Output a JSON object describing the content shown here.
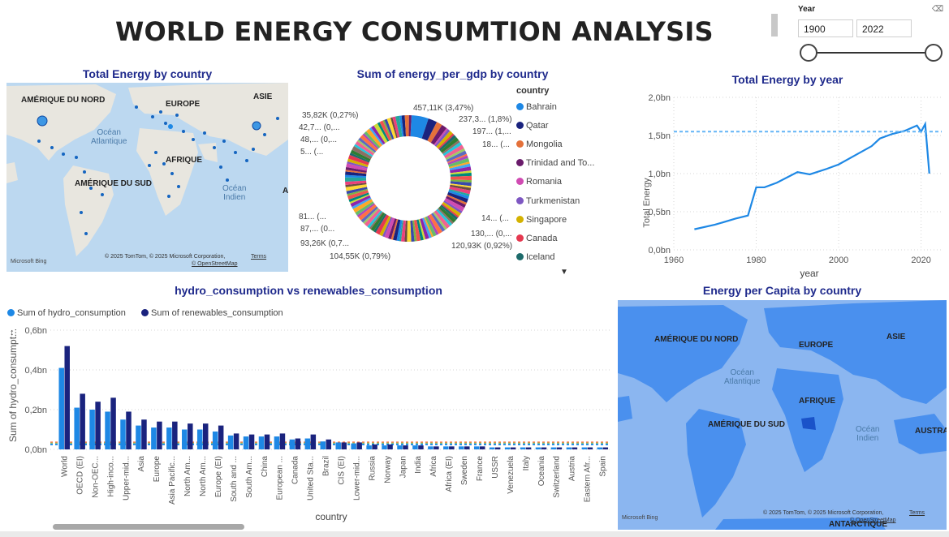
{
  "header": {
    "title": "WORLD ENERGY CONSUMTION ANALYSIS"
  },
  "slicer": {
    "label": "Year",
    "start": "1900",
    "end": "2022"
  },
  "map1": {
    "title": "Total Energy by country",
    "labels": {
      "north_america": "AMÉRIQUE DU NORD",
      "europe": "EUROPE",
      "asia": "ASIE",
      "africa": "AFRIQUE",
      "south_america": "AMÉRIQUE DU SUD",
      "a": "A"
    },
    "oceans": {
      "atlantic": "Océan\nAtlantique",
      "indian": "Océan\nIndien"
    },
    "copyright": "© 2025 TomTom, © 2025 Microsoft Corporation,",
    "terms": "Terms",
    "osm": "© OpenStreetMap",
    "bing": "Microsoft Bing"
  },
  "donut": {
    "title": "Sum of energy_per_gdp by country",
    "legend_title": "country",
    "legend": [
      {
        "name": "Bahrain",
        "color": "#1e88e5"
      },
      {
        "name": "Qatar",
        "color": "#1a237e"
      },
      {
        "name": "Mongolia",
        "color": "#e4713a"
      },
      {
        "name": "Trinidad and To...",
        "color": "#6a1b6b"
      },
      {
        "name": "Romania",
        "color": "#d04bb2"
      },
      {
        "name": "Turkmenistan",
        "color": "#7e57c2"
      },
      {
        "name": "Singapore",
        "color": "#d4b200"
      },
      {
        "name": "Canada",
        "color": "#e53950"
      },
      {
        "name": "Iceland",
        "color": "#1d6b6b"
      }
    ],
    "labels": [
      "457,11K (3,47%)",
      "237,3... (1,8%)",
      "197... (1,...",
      "18... (...",
      "35,82K (0,27%)",
      "42,7... (0,...",
      "48,... (0,...",
      "5... (...",
      "14... (...",
      "130,... (0,...",
      "120,93K (0,92%)",
      "104,55K (0,79%)",
      "93,26K (0,7...",
      "87,... (0...",
      "81... (..."
    ]
  },
  "line": {
    "title": "Total Energy by year",
    "xlabel": "year",
    "ylabel": "Total Energy",
    "y_ticks": [
      "0,0bn",
      "0,5bn",
      "1,0bn",
      "1,5bn",
      "2,0bn"
    ],
    "x_ticks": [
      "1960",
      "1980",
      "2000",
      "2020"
    ]
  },
  "bars": {
    "title": "hydro_consumption vs renewables_consumption",
    "xlabel": "country",
    "ylabel": "Sum of hydro_consumpt...",
    "y_ticks": [
      "0,0bn",
      "0,2bn",
      "0,4bn",
      "0,6bn"
    ]
  },
  "map2": {
    "title": "Energy per Capita by country",
    "labels": {
      "north_america": "AMÉRIQUE DU NORD",
      "europe": "EUROPE",
      "asia": "ASIE",
      "africa": "AFRIQUE",
      "south_america": "AMÉRIQUE DU SUD",
      "australia": "AUSTRA",
      "antarctica": "ANTARCTIQUE"
    },
    "oceans": {
      "atlantic": "Océan\nAtlantique",
      "indian": "Océan\nIndien"
    },
    "copyright": "© 2025 TomTom, © 2025 Microsoft Corporation,",
    "terms": "Terms",
    "osm": "© OpenStreetMap",
    "bing": "Microsoft Bing"
  },
  "chart_data": [
    {
      "type": "pie",
      "title": "Sum of energy_per_gdp by country",
      "legend_title": "country",
      "categories": [
        "Bahrain",
        "Qatar",
        "Mongolia",
        "Trinidad and To...",
        "Romania",
        "Turkmenistan",
        "Singapore",
        "Canada",
        "Iceland"
      ],
      "highlighted_slices": [
        {
          "label": "457,11K (3,47%)",
          "value": 457110,
          "percent": 3.47
        },
        {
          "label": "237,3... (1,8%)",
          "value": 237300,
          "percent": 1.8
        },
        {
          "label": "120,93K (0,92%)",
          "value": 120930,
          "percent": 0.92
        },
        {
          "label": "104,55K (0,79%)",
          "value": 104550,
          "percent": 0.79
        },
        {
          "label": "35,82K (0,27%)",
          "value": 35820,
          "percent": 0.27
        }
      ]
    },
    {
      "type": "line",
      "title": "Total Energy by year",
      "xlabel": "year",
      "ylabel": "Total Energy",
      "x": [
        1965,
        1970,
        1975,
        1978,
        1980,
        1982,
        1985,
        1990,
        1993,
        1997,
        2000,
        2004,
        2008,
        2010,
        2013,
        2016,
        2019,
        2020,
        2021,
        2022
      ],
      "y": [
        0.27,
        0.33,
        0.41,
        0.45,
        0.82,
        0.82,
        0.88,
        1.02,
        0.99,
        1.06,
        1.12,
        1.24,
        1.36,
        1.46,
        1.52,
        1.56,
        1.63,
        1.55,
        1.65,
        1.0
      ],
      "units": "bn",
      "ylim": [
        0,
        2.0
      ],
      "xlim": [
        1960,
        2025
      ],
      "reference_line": 1.55,
      "grid": true
    },
    {
      "type": "bar",
      "title": "hydro_consumption vs renewables_consumption",
      "xlabel": "country",
      "ylabel": "Sum of hydro_consumpt...",
      "units": "bn",
      "ylim": [
        0,
        0.6
      ],
      "legend_position": "top-left",
      "categories": [
        "World",
        "OECD (EI)",
        "Non-OEC...",
        "High-inco...",
        "Upper-mid...",
        "Asia",
        "Europe",
        "Asia Pacific...",
        "North Am...",
        "North Am...",
        "Europe (EI)",
        "South and ...",
        "South Am...",
        "China",
        "European ...",
        "Canada",
        "United Sta...",
        "Brazil",
        "CIS (EI)",
        "Lower-mid...",
        "Russia",
        "Norway",
        "Japan",
        "India",
        "Africa",
        "Africa (EI)",
        "Sweden",
        "France",
        "USSR",
        "Venezuela",
        "Italy",
        "Oceania",
        "Switzerland",
        "Austria",
        "Eastern Afr...",
        "Spain"
      ],
      "series": [
        {
          "name": "Sum of hydro_consumption",
          "color": "#1e88e5",
          "values": [
            0.41,
            0.21,
            0.2,
            0.19,
            0.15,
            0.12,
            0.11,
            0.11,
            0.1,
            0.1,
            0.09,
            0.07,
            0.065,
            0.065,
            0.065,
            0.05,
            0.055,
            0.04,
            0.035,
            0.03,
            0.02,
            0.02,
            0.02,
            0.02,
            0.015,
            0.015,
            0.015,
            0.015,
            0.01,
            0.01,
            0.01,
            0.01,
            0.01,
            0.01,
            0.01,
            0.01
          ]
        },
        {
          "name": "Sum of renewables_consumption",
          "color": "#1a237e",
          "values": [
            0.52,
            0.28,
            0.24,
            0.26,
            0.19,
            0.15,
            0.14,
            0.14,
            0.13,
            0.13,
            0.12,
            0.08,
            0.075,
            0.075,
            0.08,
            0.055,
            0.075,
            0.05,
            0.035,
            0.035,
            0.025,
            0.025,
            0.02,
            0.02,
            0.015,
            0.015,
            0.015,
            0.015,
            0.01,
            0.01,
            0.01,
            0.01,
            0.01,
            0.01,
            0.01,
            0.01
          ]
        }
      ]
    }
  ]
}
